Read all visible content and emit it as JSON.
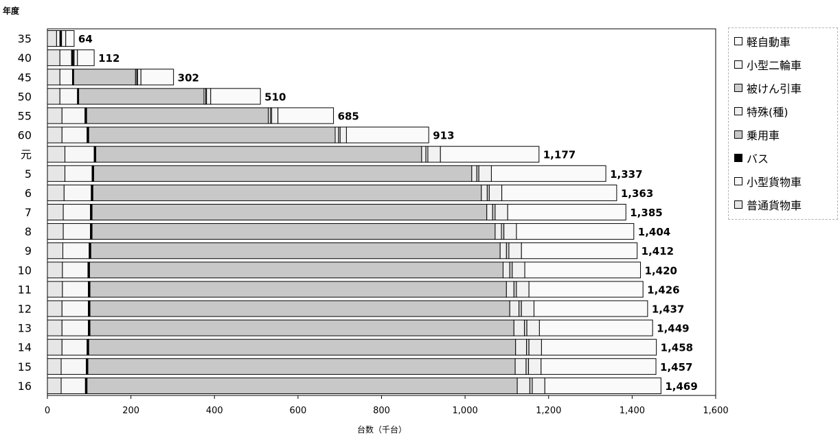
{
  "chart_data": {
    "type": "bar",
    "orientation": "horizontal",
    "stacked": true,
    "y_axis_title": "年度",
    "xlabel": "台数（千台）",
    "xlim": [
      0,
      1600
    ],
    "x_ticks": [
      "0",
      "200",
      "400",
      "600",
      "800",
      "1,000",
      "1,200",
      "1,400",
      "1,600"
    ],
    "categories": [
      "35",
      "40",
      "45",
      "50",
      "55",
      "60",
      "元",
      "5",
      "6",
      "7",
      "8",
      "9",
      "10",
      "11",
      "12",
      "13",
      "14",
      "15",
      "16"
    ],
    "totals": [
      64,
      112,
      302,
      510,
      685,
      913,
      1177,
      1337,
      1363,
      1385,
      1404,
      1412,
      1420,
      1426,
      1437,
      1449,
      1458,
      1457,
      1469
    ],
    "total_labels": [
      "64",
      "112",
      "302",
      "510",
      "685",
      "913",
      "1,177",
      "1,337",
      "1,363",
      "1,385",
      "1,404",
      "1,412",
      "1,420",
      "1,426",
      "1,437",
      "1,449",
      "1,458",
      "1,457",
      "1,469"
    ],
    "legend_position": "right",
    "series": [
      {
        "name": "普通貨物車",
        "color": "#e6e6e6",
        "values": [
          22,
          30,
          30,
          30,
          35,
          35,
          42,
          42,
          40,
          38,
          38,
          37,
          36,
          36,
          35,
          35,
          35,
          33,
          33
        ]
      },
      {
        "name": "小型貨物車",
        "color": "#f7f7f7",
        "values": [
          8,
          28,
          30,
          42,
          55,
          60,
          70,
          65,
          65,
          65,
          65,
          63,
          61,
          62,
          63,
          63,
          60,
          60,
          58
        ]
      },
      {
        "name": "バス",
        "color": "#000000",
        "values": [
          2,
          3,
          3,
          3,
          4,
          4,
          4,
          4,
          4,
          4,
          4,
          4,
          4,
          4,
          4,
          4,
          4,
          4,
          4
        ]
      },
      {
        "name": "乗用車",
        "color": "#c8c8c8",
        "values": [
          0,
          0,
          148,
          300,
          435,
          590,
          780,
          905,
          930,
          945,
          965,
          980,
          990,
          997,
          1005,
          1015,
          1022,
          1023,
          1030
        ]
      },
      {
        "name": "特殊(種)",
        "color": "#efefef",
        "values": [
          1,
          2,
          3,
          4,
          5,
          8,
          10,
          12,
          14,
          14,
          15,
          15,
          16,
          18,
          22,
          25,
          26,
          26,
          30
        ]
      },
      {
        "name": "被けん引車",
        "color": "#d0d0d0",
        "values": [
          1,
          1,
          2,
          2,
          3,
          4,
          5,
          5,
          5,
          6,
          6,
          6,
          6,
          6,
          6,
          6,
          6,
          6,
          6
        ]
      },
      {
        "name": "小型二輪車",
        "color": "#f2f2f2",
        "values": [
          10,
          8,
          8,
          10,
          15,
          15,
          30,
          30,
          30,
          30,
          30,
          30,
          30,
          30,
          30,
          30,
          30,
          30,
          30
        ]
      },
      {
        "name": "軽自動車",
        "color": "#fafafa",
        "values": [
          20,
          40,
          78,
          119,
          133,
          197,
          236,
          274,
          275,
          283,
          281,
          277,
          277,
          273,
          272,
          271,
          275,
          275,
          278
        ]
      }
    ],
    "legend_order": [
      "軽自動車",
      "小型二輪車",
      "被けん引車",
      "特殊(種)",
      "乗用車",
      "バス",
      "小型貨物車",
      "普通貨物車"
    ]
  }
}
